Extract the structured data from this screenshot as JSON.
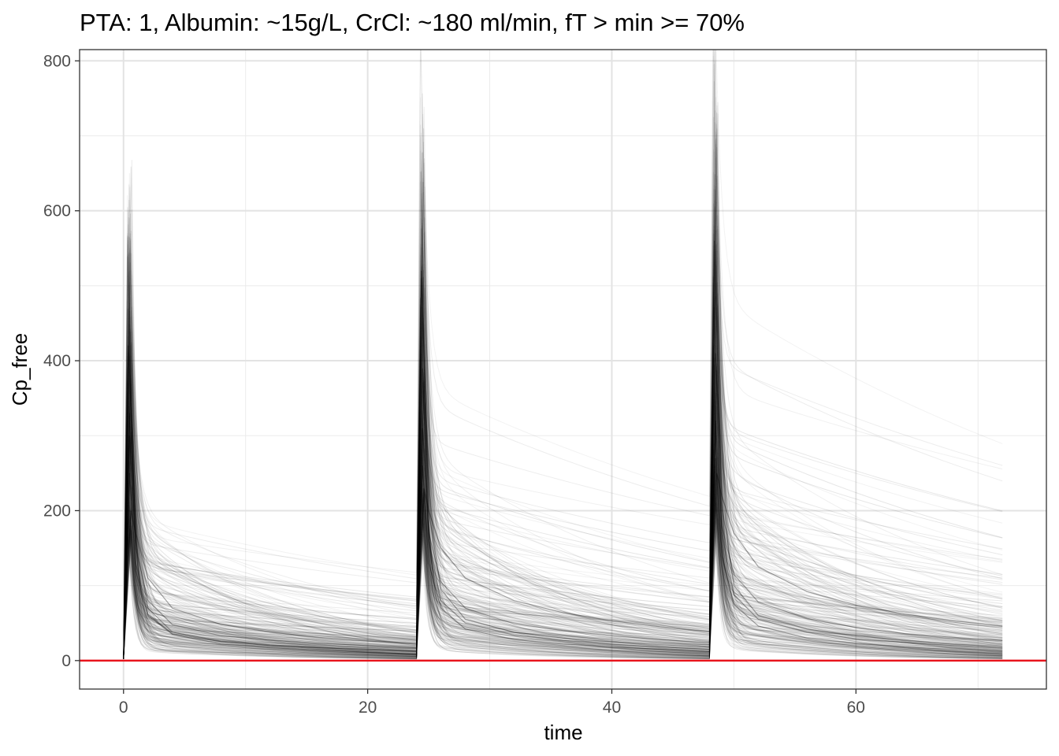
{
  "chart_data": {
    "type": "line",
    "title": "PTA: 1, Albumin: ~15g/L, CrCl: ~180 ml/min, fT > min >= 70%",
    "xlabel": "time",
    "ylabel": "Cp_free",
    "xlim": [
      -3.6,
      75.6
    ],
    "ylim": [
      -38,
      815
    ],
    "x_ticks": [
      0,
      20,
      40,
      60
    ],
    "y_ticks": [
      0,
      200,
      400,
      600,
      800
    ],
    "x_tick_labels": [
      "0",
      "20",
      "40",
      "60"
    ],
    "y_tick_labels": [
      "0",
      "200",
      "400",
      "600",
      "800"
    ],
    "x_minor_grid": [
      10,
      30,
      50,
      70
    ],
    "y_minor_grid": [
      100,
      300,
      500,
      700
    ],
    "grid": true,
    "legend": "none",
    "description_dosing_times": [
      0,
      24,
      48
    ],
    "end_time": 72,
    "series": [
      {
        "color": "#000000",
        "points": [
          [
            0,
            3
          ],
          [
            0.5,
            300
          ],
          [
            1,
            150
          ],
          [
            2,
            80
          ],
          [
            4,
            48
          ],
          [
            8,
            33
          ],
          [
            12,
            27
          ],
          [
            16,
            23
          ],
          [
            20,
            20
          ],
          [
            24,
            17
          ],
          [
            24.5,
            310
          ],
          [
            25,
            170
          ],
          [
            26,
            105
          ],
          [
            28,
            70
          ],
          [
            32,
            49
          ],
          [
            36,
            40
          ],
          [
            40,
            33
          ],
          [
            44,
            28
          ],
          [
            48,
            24
          ],
          [
            48.5,
            320
          ],
          [
            49,
            180
          ],
          [
            50,
            115
          ],
          [
            52,
            78
          ],
          [
            56,
            56
          ],
          [
            60,
            44
          ],
          [
            64,
            36
          ],
          [
            68,
            31
          ],
          [
            72,
            27
          ]
        ]
      },
      {
        "color": "#000000",
        "points": [
          [
            0,
            3
          ],
          [
            0.4,
            420
          ],
          [
            1,
            160
          ],
          [
            2,
            70
          ],
          [
            4,
            38
          ],
          [
            8,
            26
          ],
          [
            12,
            21
          ],
          [
            16,
            18
          ],
          [
            20,
            15
          ],
          [
            24,
            13
          ],
          [
            24.4,
            520
          ],
          [
            25,
            200
          ],
          [
            26,
            95
          ],
          [
            28,
            55
          ],
          [
            32,
            38
          ],
          [
            36,
            30
          ],
          [
            40,
            25
          ],
          [
            44,
            21
          ],
          [
            48,
            18
          ],
          [
            48.4,
            560
          ],
          [
            49,
            210
          ],
          [
            50,
            100
          ],
          [
            52,
            60
          ],
          [
            56,
            42
          ],
          [
            60,
            33
          ],
          [
            64,
            27
          ],
          [
            68,
            22
          ],
          [
            72,
            19
          ]
        ]
      },
      {
        "color": "#000000",
        "points": [
          [
            0,
            3
          ],
          [
            0.5,
            250
          ],
          [
            1,
            120
          ],
          [
            2,
            60
          ],
          [
            4,
            35
          ],
          [
            8,
            22
          ],
          [
            12,
            17
          ],
          [
            16,
            14
          ],
          [
            20,
            11
          ],
          [
            24,
            9
          ],
          [
            24.5,
            260
          ],
          [
            25,
            130
          ],
          [
            26,
            70
          ],
          [
            28,
            42
          ],
          [
            32,
            28
          ],
          [
            36,
            22
          ],
          [
            40,
            18
          ],
          [
            44,
            15
          ],
          [
            48,
            12
          ],
          [
            48.5,
            270
          ],
          [
            49,
            140
          ],
          [
            50,
            75
          ],
          [
            52,
            46
          ],
          [
            56,
            30
          ],
          [
            60,
            23
          ],
          [
            64,
            18
          ],
          [
            68,
            15
          ],
          [
            72,
            12
          ]
        ]
      },
      {
        "color": "#000000",
        "points": [
          [
            0,
            3
          ],
          [
            0.6,
            200
          ],
          [
            1,
            170
          ],
          [
            2,
            110
          ],
          [
            4,
            70
          ],
          [
            8,
            48
          ],
          [
            12,
            38
          ],
          [
            16,
            31
          ],
          [
            20,
            26
          ],
          [
            24,
            22
          ],
          [
            24.6,
            230
          ],
          [
            25,
            200
          ],
          [
            26,
            150
          ],
          [
            28,
            110
          ],
          [
            32,
            80
          ],
          [
            36,
            64
          ],
          [
            40,
            53
          ],
          [
            44,
            45
          ],
          [
            48,
            39
          ],
          [
            48.6,
            250
          ],
          [
            49,
            220
          ],
          [
            50,
            170
          ],
          [
            52,
            125
          ],
          [
            56,
            92
          ],
          [
            60,
            74
          ],
          [
            64,
            62
          ],
          [
            68,
            53
          ],
          [
            72,
            46
          ]
        ]
      },
      {
        "color": "#000000",
        "points": [
          [
            0,
            3
          ],
          [
            0.5,
            330
          ],
          [
            1,
            130
          ],
          [
            2,
            62
          ],
          [
            4,
            36
          ],
          [
            8,
            25
          ],
          [
            12,
            20
          ],
          [
            16,
            17
          ],
          [
            20,
            14
          ],
          [
            24,
            12
          ],
          [
            24.5,
            390
          ],
          [
            25,
            160
          ],
          [
            26,
            80
          ],
          [
            28,
            50
          ],
          [
            32,
            34
          ],
          [
            36,
            27
          ],
          [
            40,
            22
          ],
          [
            44,
            18
          ],
          [
            48,
            15
          ],
          [
            48.5,
            410
          ],
          [
            49,
            170
          ],
          [
            50,
            88
          ],
          [
            52,
            55
          ],
          [
            56,
            38
          ],
          [
            60,
            29
          ],
          [
            64,
            24
          ],
          [
            68,
            20
          ],
          [
            72,
            17
          ]
        ]
      }
    ],
    "reference_line": {
      "y": 0,
      "color": "#e8141c"
    }
  }
}
